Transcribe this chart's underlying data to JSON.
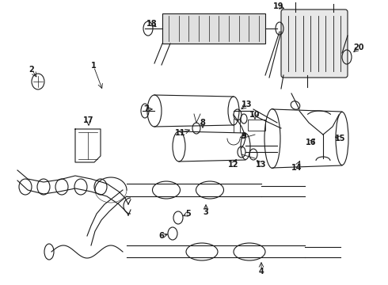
{
  "bg_color": "#ffffff",
  "line_color": "#1a1a1a",
  "fig_w": 4.9,
  "fig_h": 3.6,
  "dpi": 100
}
